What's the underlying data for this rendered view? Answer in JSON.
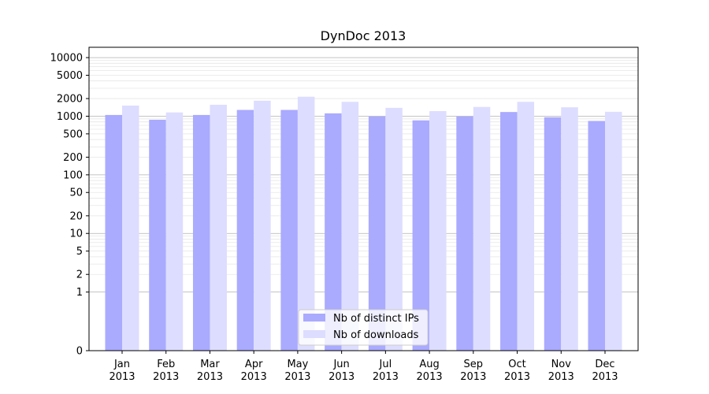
{
  "chart_data": {
    "type": "bar",
    "title": "DynDoc 2013",
    "xlabel": "",
    "ylabel": "",
    "y_scale": "symlog",
    "ylim": [
      0,
      15000
    ],
    "y_ticks": [
      0,
      1,
      2,
      5,
      10,
      20,
      50,
      100,
      200,
      500,
      1000,
      2000,
      5000,
      10000
    ],
    "grid": "horizontal",
    "legend_position": "bottom-center",
    "categories": [
      "Jan\n2013",
      "Feb\n2013",
      "Mar\n2013",
      "Apr\n2013",
      "May\n2013",
      "Jun\n2013",
      "Jul\n2013",
      "Aug\n2013",
      "Sep\n2013",
      "Oct\n2013",
      "Nov\n2013",
      "Dec\n2013"
    ],
    "series": [
      {
        "name": "Nb of distinct IPs",
        "color": "#aaaaff",
        "values": [
          1050,
          870,
          1050,
          1280,
          1280,
          1120,
          990,
          850,
          990,
          1180,
          960,
          830
        ]
      },
      {
        "name": "Nb of downloads",
        "color": "#ddddff",
        "values": [
          1520,
          1160,
          1570,
          1840,
          2150,
          1760,
          1390,
          1220,
          1440,
          1760,
          1420,
          1190
        ]
      }
    ]
  }
}
